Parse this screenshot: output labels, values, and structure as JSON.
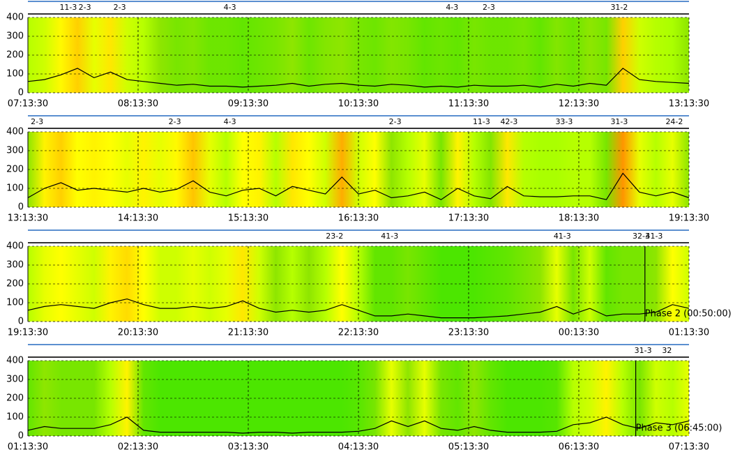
{
  "chart_data": [
    {
      "type": "line",
      "color": "#000000",
      "grid": true,
      "xlim": [
        0,
        360
      ],
      "ylim": [
        0,
        400
      ],
      "yticks": [
        0,
        100,
        200,
        300,
        400
      ],
      "xticks": [
        {
          "value": 0,
          "label": "07:13:30"
        },
        {
          "value": 60,
          "label": "08:13:30"
        },
        {
          "value": 120,
          "label": "09:13:30"
        },
        {
          "value": 180,
          "label": "10:13:30"
        },
        {
          "value": 240,
          "label": "11:13:30"
        },
        {
          "value": 300,
          "label": "12:13:30"
        },
        {
          "value": 360,
          "label": "13:13:30"
        }
      ],
      "x": [
        0,
        9,
        18,
        27,
        36,
        45,
        54,
        63,
        72,
        81,
        90,
        99,
        108,
        117,
        126,
        135,
        144,
        153,
        162,
        171,
        180,
        189,
        198,
        207,
        216,
        225,
        234,
        243,
        252,
        261,
        270,
        279,
        288,
        297,
        306,
        315,
        324,
        333,
        342,
        351,
        360
      ],
      "values": [
        60,
        70,
        95,
        130,
        80,
        110,
        70,
        60,
        50,
        40,
        45,
        35,
        35,
        30,
        35,
        40,
        50,
        35,
        45,
        50,
        40,
        35,
        45,
        40,
        30,
        35,
        30,
        40,
        35,
        35,
        40,
        30,
        45,
        35,
        50,
        40,
        130,
        70,
        60,
        55,
        50
      ],
      "annotations": [
        {
          "label": "11-3",
          "x": 22
        },
        {
          "label": "2-3",
          "x": 31
        },
        {
          "label": "2-3",
          "x": 50
        },
        {
          "label": "4-3",
          "x": 110
        },
        {
          "label": "4-3",
          "x": 231
        },
        {
          "label": "2-3",
          "x": 251
        },
        {
          "label": "31-2",
          "x": 322
        }
      ]
    },
    {
      "type": "line",
      "color": "#000000",
      "grid": true,
      "xlim": [
        0,
        360
      ],
      "ylim": [
        0,
        400
      ],
      "yticks": [
        0,
        100,
        200,
        300,
        400
      ],
      "xticks": [
        {
          "value": 0,
          "label": "13:13:30"
        },
        {
          "value": 60,
          "label": "14:13:30"
        },
        {
          "value": 120,
          "label": "15:13:30"
        },
        {
          "value": 180,
          "label": "16:13:30"
        },
        {
          "value": 240,
          "label": "17:13:30"
        },
        {
          "value": 300,
          "label": "18:13:30"
        },
        {
          "value": 360,
          "label": "19:13:30"
        }
      ],
      "x": [
        0,
        9,
        18,
        27,
        36,
        45,
        54,
        63,
        72,
        81,
        90,
        99,
        108,
        117,
        126,
        135,
        144,
        153,
        162,
        171,
        180,
        189,
        198,
        207,
        216,
        225,
        234,
        243,
        252,
        261,
        270,
        279,
        288,
        297,
        306,
        315,
        324,
        333,
        342,
        351,
        360
      ],
      "values": [
        50,
        100,
        130,
        90,
        100,
        90,
        80,
        100,
        80,
        95,
        140,
        80,
        60,
        90,
        100,
        60,
        110,
        90,
        70,
        160,
        70,
        90,
        50,
        60,
        80,
        40,
        100,
        60,
        45,
        110,
        60,
        55,
        55,
        60,
        60,
        40,
        180,
        80,
        60,
        80,
        50
      ],
      "annotations": [
        {
          "label": "2-3",
          "x": 5
        },
        {
          "label": "2-3",
          "x": 80
        },
        {
          "label": "4-3",
          "x": 110
        },
        {
          "label": "2-3",
          "x": 200
        },
        {
          "label": "11-3",
          "x": 247
        },
        {
          "label": "42-3",
          "x": 262
        },
        {
          "label": "33-3",
          "x": 292
        },
        {
          "label": "31-3",
          "x": 322
        },
        {
          "label": "24-2",
          "x": 352
        }
      ]
    },
    {
      "type": "line",
      "color": "#000000",
      "grid": true,
      "xlim": [
        0,
        360
      ],
      "ylim": [
        0,
        400
      ],
      "yticks": [
        0,
        100,
        200,
        300,
        400
      ],
      "xticks": [
        {
          "value": 0,
          "label": "19:13:30"
        },
        {
          "value": 60,
          "label": "20:13:30"
        },
        {
          "value": 120,
          "label": "21:13:30"
        },
        {
          "value": 180,
          "label": "22:13:30"
        },
        {
          "value": 240,
          "label": "23:13:30"
        },
        {
          "value": 300,
          "label": "00:13:30"
        },
        {
          "value": 360,
          "label": "01:13:30"
        }
      ],
      "x": [
        0,
        9,
        18,
        27,
        36,
        45,
        54,
        63,
        72,
        81,
        90,
        99,
        108,
        117,
        126,
        135,
        144,
        153,
        162,
        171,
        180,
        189,
        198,
        207,
        216,
        225,
        234,
        243,
        252,
        261,
        270,
        279,
        288,
        297,
        306,
        315,
        324,
        333,
        342,
        351,
        360
      ],
      "values": [
        60,
        80,
        90,
        80,
        70,
        100,
        120,
        90,
        70,
        70,
        80,
        70,
        80,
        110,
        70,
        50,
        60,
        50,
        60,
        90,
        60,
        30,
        30,
        40,
        30,
        20,
        20,
        20,
        25,
        30,
        40,
        50,
        80,
        40,
        70,
        30,
        40,
        40,
        50,
        90,
        70
      ],
      "annotations": [
        {
          "label": "23-2",
          "x": 167
        },
        {
          "label": "41-3",
          "x": 197
        },
        {
          "label": "41-3",
          "x": 291
        },
        {
          "label": "32-3",
          "x": 334
        },
        {
          "label": "41-3",
          "x": 341
        }
      ],
      "phase": {
        "label": "Phase 2 (00:50:00)",
        "x": 336
      }
    },
    {
      "type": "line",
      "color": "#000000",
      "grid": true,
      "xlim": [
        0,
        360
      ],
      "ylim": [
        0,
        400
      ],
      "yticks": [
        0,
        100,
        200,
        300,
        400
      ],
      "xticks": [
        {
          "value": 0,
          "label": "01:13:30"
        },
        {
          "value": 60,
          "label": "02:13:30"
        },
        {
          "value": 120,
          "label": "03:13:30"
        },
        {
          "value": 180,
          "label": "04:13:30"
        },
        {
          "value": 240,
          "label": "05:13:30"
        },
        {
          "value": 300,
          "label": "06:13:30"
        },
        {
          "value": 360,
          "label": "07:13:30"
        }
      ],
      "x": [
        0,
        9,
        18,
        27,
        36,
        45,
        54,
        63,
        72,
        81,
        90,
        99,
        108,
        117,
        126,
        135,
        144,
        153,
        162,
        171,
        180,
        189,
        198,
        207,
        216,
        225,
        234,
        243,
        252,
        261,
        270,
        279,
        288,
        297,
        306,
        315,
        324,
        333,
        342,
        351,
        360
      ],
      "values": [
        30,
        50,
        40,
        40,
        40,
        60,
        100,
        30,
        20,
        20,
        20,
        20,
        20,
        15,
        20,
        20,
        15,
        20,
        20,
        20,
        25,
        40,
        80,
        50,
        80,
        40,
        30,
        50,
        30,
        20,
        20,
        20,
        25,
        60,
        70,
        100,
        60,
        40,
        70,
        60,
        80
      ],
      "annotations": [
        {
          "label": "31-3",
          "x": 335
        },
        {
          "label": "32",
          "x": 348
        }
      ],
      "phase": {
        "label": "Phase 3 (06:45:00)",
        "x": 331
      }
    }
  ]
}
